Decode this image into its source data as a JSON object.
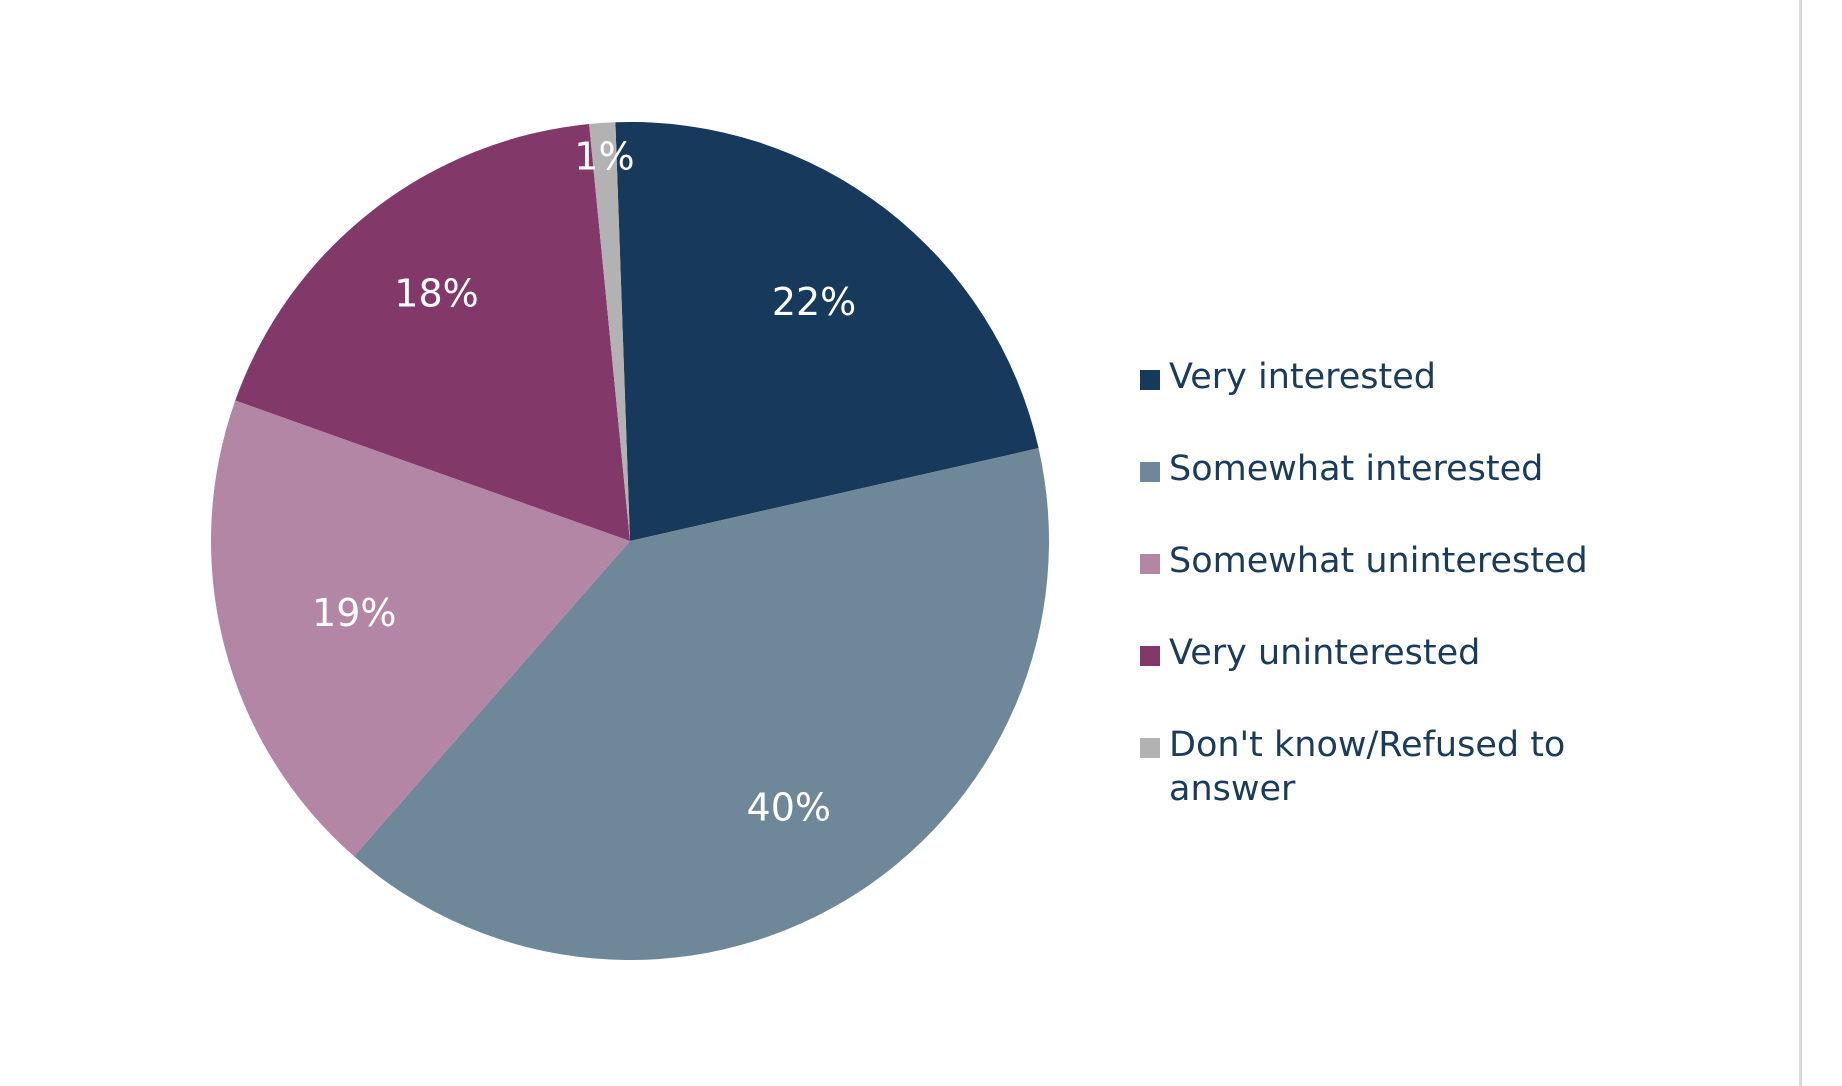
{
  "chart_data": {
    "type": "pie",
    "title": "",
    "legend_position": "right",
    "start_angle_deg": -2,
    "slices": [
      {
        "label": "Very interested",
        "value": 22,
        "value_label": "22%",
        "color": "#17395b"
      },
      {
        "label": "Somewhat interested",
        "value": 40,
        "value_label": "40%",
        "color": "#6e889a"
      },
      {
        "label": "Somewhat uninterested",
        "value": 19,
        "value_label": "19%",
        "color": "#b386a6"
      },
      {
        "label": "Very uninterested",
        "value": 18,
        "value_label": "18%",
        "color": "#83386a"
      },
      {
        "label": "Don't know/Refused to answer",
        "value": 1,
        "value_label": "1%",
        "color": "#b2b2b2"
      }
    ]
  }
}
